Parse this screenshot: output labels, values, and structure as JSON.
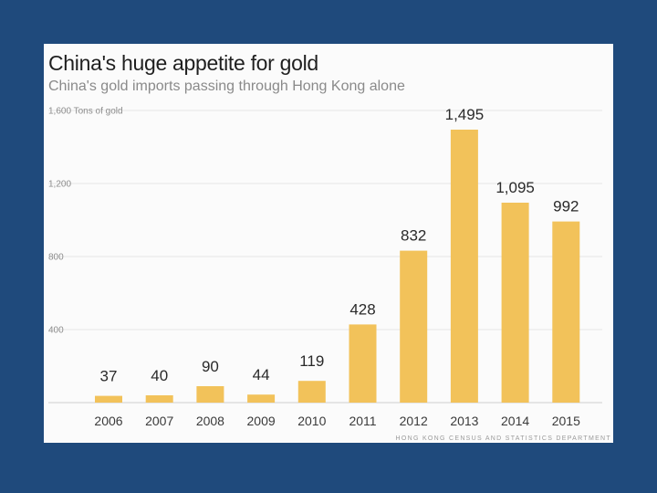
{
  "chart_data": {
    "type": "bar",
    "title": "China's huge appetite for gold",
    "subtitle": "China's gold imports passing through Hong Kong alone",
    "ylabel": "Tons of gold",
    "source": "HONG KONG CENSUS AND STATISTICS DEPARTMENT",
    "categories": [
      "2006",
      "2007",
      "2008",
      "2009",
      "2010",
      "2011",
      "2012",
      "2013",
      "2014",
      "2015"
    ],
    "values": [
      37,
      40,
      90,
      44,
      119,
      428,
      832,
      1495,
      1095,
      992
    ],
    "value_labels": [
      "37",
      "40",
      "90",
      "44",
      "119",
      "428",
      "832",
      "1,495",
      "1,095",
      "992"
    ],
    "ylim": [
      0,
      1600
    ],
    "yticks": [
      400,
      800,
      1200,
      1600
    ],
    "ytick_labels": [
      "400",
      "800",
      "1,200",
      "1,600"
    ],
    "grid": true,
    "bar_color": "#f2c25a"
  }
}
